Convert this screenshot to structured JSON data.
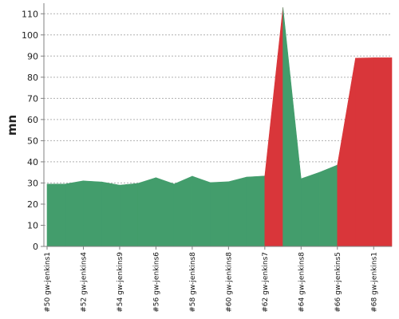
{
  "chart_data": {
    "type": "area",
    "ylabel": "mn",
    "ylim": [
      0,
      115
    ],
    "yticks": [
      0,
      10,
      20,
      30,
      40,
      50,
      60,
      70,
      80,
      90,
      100,
      110
    ],
    "grid": true,
    "builds": [
      50,
      51,
      52,
      53,
      54,
      55,
      56,
      57,
      58,
      59,
      60,
      61,
      62,
      63,
      64,
      65,
      66,
      67,
      68,
      69
    ],
    "x_tick_labels": [
      {
        "build": 50,
        "label": "#50 gw-jenkins1"
      },
      {
        "build": 52,
        "label": "#52 gw-jenkins4"
      },
      {
        "build": 54,
        "label": "#54 gw-jenkins9"
      },
      {
        "build": 56,
        "label": "#56 gw-jenkins6"
      },
      {
        "build": 58,
        "label": "#58 gw-jenkins8"
      },
      {
        "build": 60,
        "label": "#60 gw-jenkins8"
      },
      {
        "build": 62,
        "label": "#62 gw-jenkins7"
      },
      {
        "build": 64,
        "label": "#64 gw-jenkins8"
      },
      {
        "build": 66,
        "label": "#66 gw-jenkins5"
      },
      {
        "build": 68,
        "label": "#68 gw-jenkins1"
      }
    ],
    "values": [
      29.5,
      29.5,
      31,
      30.5,
      29,
      29.8,
      32.5,
      29.5,
      33.2,
      30.2,
      30.6,
      32.8,
      33.3,
      113,
      32,
      35,
      38.5,
      89,
      89.2,
      89.2
    ],
    "status": [
      "success",
      "success",
      "success",
      "success",
      "success",
      "success",
      "success",
      "success",
      "success",
      "success",
      "success",
      "success",
      "success",
      "failure",
      "success",
      "success",
      "success",
      "failure",
      "failure",
      "failure"
    ],
    "colors": {
      "success": "#439d6c",
      "failure": "#d9363a"
    }
  }
}
